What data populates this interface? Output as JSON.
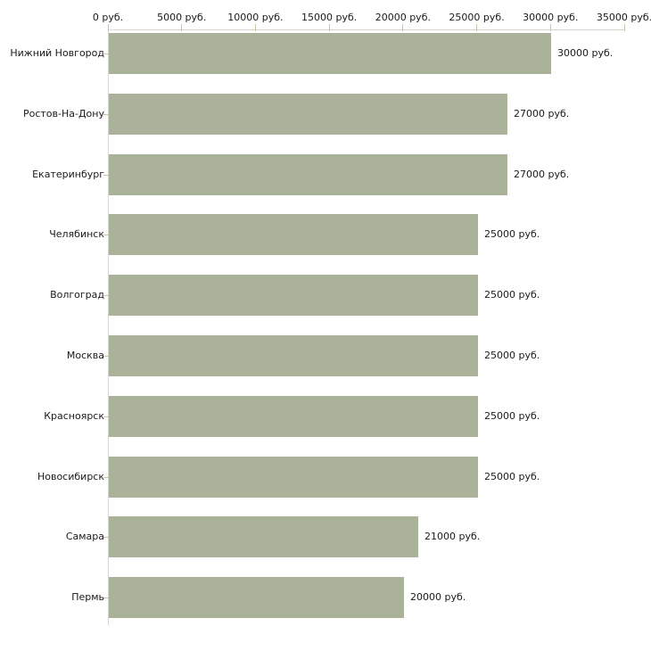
{
  "chart_data": {
    "type": "bar",
    "orientation": "horizontal",
    "title": "",
    "xlabel": "",
    "ylabel": "",
    "categories": [
      "Нижний Новгород",
      "Ростов-На-Дону",
      "Екатеринбург",
      "Челябинск",
      "Волгоград",
      "Москва",
      "Красноярск",
      "Новосибирск",
      "Самара",
      "Пермь"
    ],
    "values": [
      30000,
      27000,
      27000,
      25000,
      25000,
      25000,
      25000,
      25000,
      21000,
      20000
    ],
    "value_labels": [
      "30000 руб.",
      "27000 руб.",
      "27000 руб.",
      "25000 руб.",
      "25000 руб.",
      "25000 руб.",
      "25000 руб.",
      "25000 руб.",
      "21000 руб.",
      "20000 руб."
    ],
    "unit": "руб.",
    "xlim": [
      0,
      35000
    ],
    "x_ticks": [
      0,
      5000,
      10000,
      15000,
      20000,
      25000,
      30000,
      35000
    ],
    "x_tick_labels": [
      "0 руб.",
      "5000 руб.",
      "10000 руб.",
      "15000 руб.",
      "20000 руб.",
      "25000 руб.",
      "30000 руб.",
      "35000 руб."
    ],
    "grid": false,
    "legend": false,
    "colors": {
      "bar": "#abb29a",
      "axis": "#d6d6cc",
      "tick": "#c6c6a8",
      "text": "#1a1a1a",
      "background": "#ffffff"
    }
  }
}
